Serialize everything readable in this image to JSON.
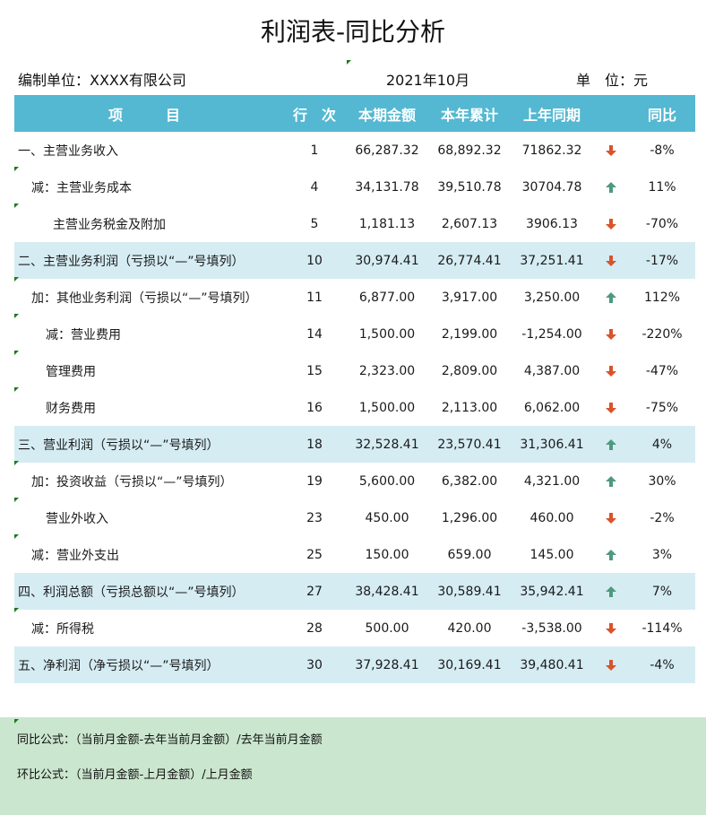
{
  "title": "利润表-同比分析",
  "meta": {
    "company": "编制单位：XXXX有限公司",
    "period": "2021年10月",
    "unit": "单　位：元"
  },
  "colors": {
    "header_bg": "#54b8d2",
    "highlight_row_bg": "#d5ecf3",
    "footer_bg": "#cbe6cf",
    "up_arrow": "#4e9a7e",
    "down_arrow": "#d9532b"
  },
  "table": {
    "headers": {
      "item": "项　　　目",
      "line": "行　次",
      "current": "本期金额",
      "ytd": "本年累计",
      "prev_year": "上年同期",
      "yoy": "同比"
    },
    "rows": [
      {
        "item": "一、主营业务收入",
        "indent": 0,
        "highlight": false,
        "line": "1",
        "current": "66,287.32",
        "ytd": "68,892.32",
        "prev_year": "71862.32",
        "trend": "down",
        "trend_icon": "down-arrow-icon",
        "yoy": "-8%"
      },
      {
        "item": "减：主营业务成本",
        "indent": 1,
        "highlight": false,
        "line": "4",
        "current": "34,131.78",
        "ytd": "39,510.78",
        "prev_year": "30704.78",
        "trend": "up",
        "trend_icon": "up-arrow-icon",
        "yoy": "11%"
      },
      {
        "item": "主营业务税金及附加",
        "indent": 3,
        "highlight": false,
        "line": "5",
        "current": "1,181.13",
        "ytd": "2,607.13",
        "prev_year": "3906.13",
        "trend": "down",
        "trend_icon": "down-arrow-icon",
        "yoy": "-70%"
      },
      {
        "item": "二、主营业务利润（亏损以“—”号填列）",
        "indent": 0,
        "highlight": true,
        "line": "10",
        "current": "30,974.41",
        "ytd": "26,774.41",
        "prev_year": "37,251.41",
        "trend": "down",
        "trend_icon": "down-arrow-icon",
        "yoy": "-17%"
      },
      {
        "item": "加：其他业务利润（亏损以“—”号填列）",
        "indent": 1,
        "highlight": false,
        "line": "11",
        "current": "6,877.00",
        "ytd": "3,917.00",
        "prev_year": "3,250.00",
        "trend": "up",
        "trend_icon": "up-arrow-icon",
        "yoy": "112%"
      },
      {
        "item": "减：营业费用",
        "indent": 2,
        "highlight": false,
        "line": "14",
        "current": "1,500.00",
        "ytd": "2,199.00",
        "prev_year": "-1,254.00",
        "trend": "down",
        "trend_icon": "down-arrow-icon",
        "yoy": "-220%"
      },
      {
        "item": "管理费用",
        "indent": 2,
        "highlight": false,
        "line": "15",
        "current": "2,323.00",
        "ytd": "2,809.00",
        "prev_year": "4,387.00",
        "trend": "down",
        "trend_icon": "down-arrow-icon",
        "yoy": "-47%"
      },
      {
        "item": "财务费用",
        "indent": 2,
        "highlight": false,
        "line": "16",
        "current": "1,500.00",
        "ytd": "2,113.00",
        "prev_year": "6,062.00",
        "trend": "down",
        "trend_icon": "down-arrow-icon",
        "yoy": "-75%"
      },
      {
        "item": "三、营业利润（亏损以“—”号填列）",
        "indent": 0,
        "highlight": true,
        "line": "18",
        "current": "32,528.41",
        "ytd": "23,570.41",
        "prev_year": "31,306.41",
        "trend": "up",
        "trend_icon": "up-arrow-icon",
        "yoy": "4%"
      },
      {
        "item": "加：投资收益（亏损以“—”号填列）",
        "indent": 1,
        "highlight": false,
        "line": "19",
        "current": "5,600.00",
        "ytd": "6,382.00",
        "prev_year": "4,321.00",
        "trend": "up",
        "trend_icon": "up-arrow-icon",
        "yoy": "30%"
      },
      {
        "item": "营业外收入",
        "indent": 2,
        "highlight": false,
        "line": "23",
        "current": "450.00",
        "ytd": "1,296.00",
        "prev_year": "460.00",
        "trend": "down",
        "trend_icon": "down-arrow-icon",
        "yoy": "-2%"
      },
      {
        "item": "减：营业外支出",
        "indent": 1,
        "highlight": false,
        "line": "25",
        "current": "150.00",
        "ytd": "659.00",
        "prev_year": "145.00",
        "trend": "up",
        "trend_icon": "up-arrow-icon",
        "yoy": "3%"
      },
      {
        "item": "四、利润总额（亏损总额以“—”号填列）",
        "indent": 0,
        "highlight": true,
        "line": "27",
        "current": "38,428.41",
        "ytd": "30,589.41",
        "prev_year": "35,942.41",
        "trend": "up",
        "trend_icon": "up-arrow-icon",
        "yoy": "7%"
      },
      {
        "item": "减：所得税",
        "indent": 1,
        "highlight": false,
        "line": "28",
        "current": "500.00",
        "ytd": "420.00",
        "prev_year": "-3,538.00",
        "trend": "down",
        "trend_icon": "down-arrow-icon",
        "yoy": "-114%"
      },
      {
        "item": "五、净利润（净亏损以“—”号填列）",
        "indent": 0,
        "highlight": true,
        "line": "30",
        "current": "37,928.41",
        "ytd": "30,169.41",
        "prev_year": "39,480.41",
        "trend": "down",
        "trend_icon": "down-arrow-icon",
        "yoy": "-4%"
      }
    ]
  },
  "footer": {
    "yoy_formula": "同比公式：（当前月金额-去年当前月金额）/去年当前月金额",
    "mom_formula": "环比公式：（当前月金额-上月金额）/上月金额"
  }
}
